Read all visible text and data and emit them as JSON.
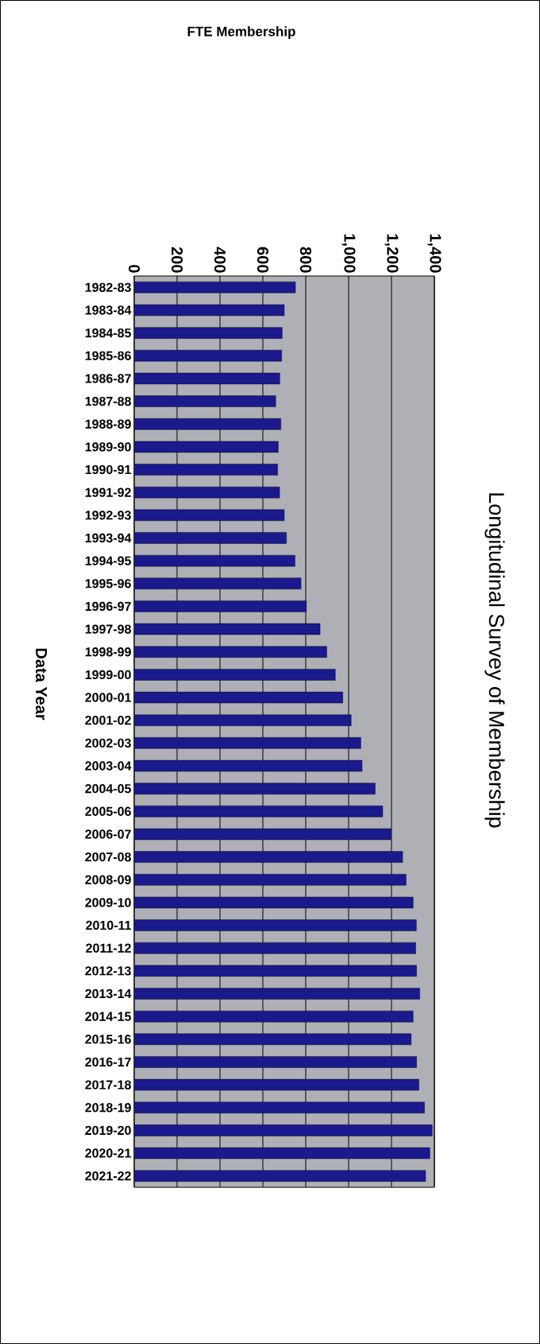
{
  "chart_data": {
    "type": "bar",
    "orientation": "horizontal",
    "title": "Longitudinal Survey of Membership",
    "annotations": [
      "FTE Membership"
    ],
    "ylabel": "Data Year",
    "categories": [
      "1982-83",
      "1983-84",
      "1984-85",
      "1985-86",
      "1986-87",
      "1987-88",
      "1988-89",
      "1989-90",
      "1990-91",
      "1991-92",
      "1992-93",
      "1993-94",
      "1994-95",
      "1995-96",
      "1996-97",
      "1997-98",
      "1998-99",
      "1999-00",
      "2000-01",
      "2001-02",
      "2002-03",
      "2003-04",
      "2004-05",
      "2005-06",
      "2006-07",
      "2007-08",
      "2008-09",
      "2009-10",
      "2010-11",
      "2011-12",
      "2012-13",
      "2013-14",
      "2014-15",
      "2015-16",
      "2016-17",
      "2017-18",
      "2018-19",
      "2019-20",
      "2020-21",
      "2021-22"
    ],
    "values": [
      752,
      700,
      690,
      688,
      679,
      660,
      684,
      672,
      669,
      678,
      700,
      710,
      750,
      778,
      803,
      867,
      898,
      938,
      973,
      1012,
      1057,
      1063,
      1124,
      1159,
      1198,
      1252,
      1268,
      1301,
      1316,
      1313,
      1317,
      1332,
      1301,
      1292,
      1317,
      1328,
      1354,
      1390,
      1379,
      1359
    ],
    "color": "#1a1a8c",
    "xlim": [
      0,
      1400
    ],
    "xticks": [
      0,
      200,
      400,
      600,
      800,
      {
        "value": 1000,
        "label": "1,000"
      },
      {
        "value": 1200,
        "label": "1,200"
      },
      {
        "value": 1400,
        "label": "1,400"
      }
    ],
    "grid": "x"
  }
}
